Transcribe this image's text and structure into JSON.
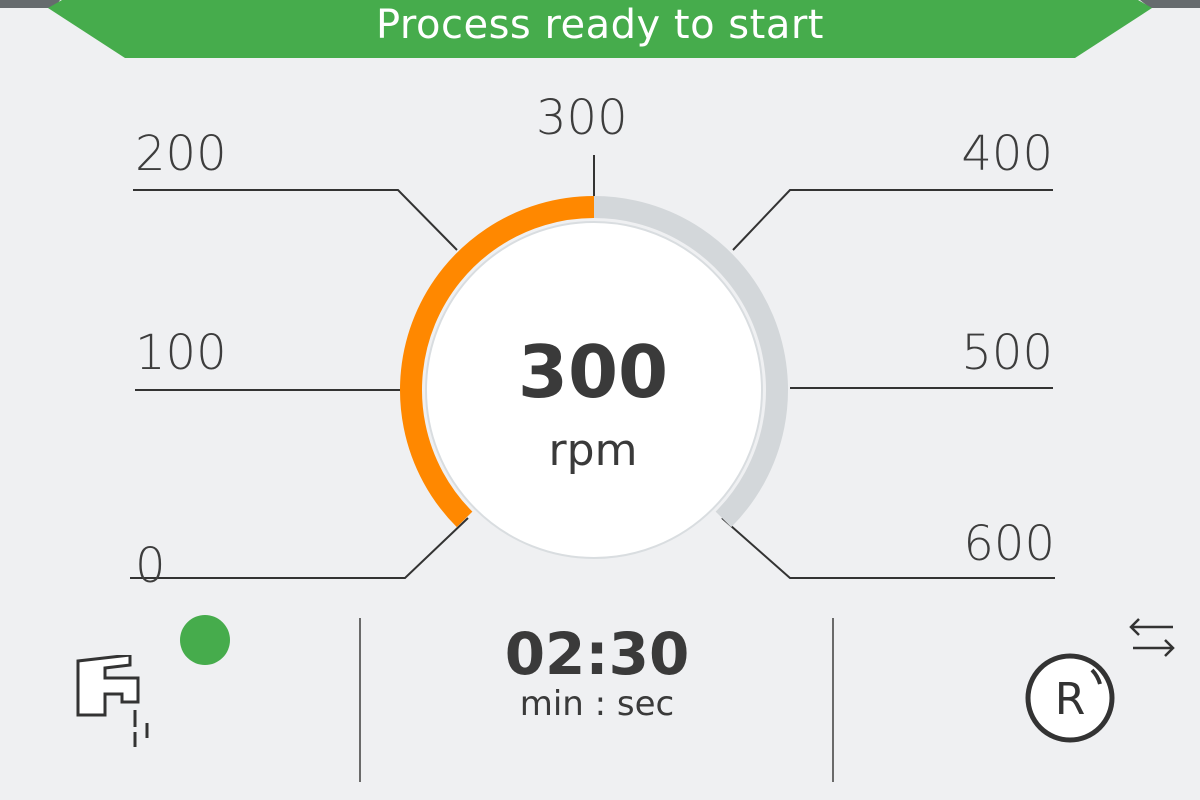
{
  "header": {
    "status_text": "Process ready to start",
    "color": "#46ac4c"
  },
  "gauge": {
    "value": "300",
    "unit": "rpm",
    "min": 0,
    "max": 600,
    "current": 300,
    "fill_color": "#ff8800",
    "track_color": "#d3d7da",
    "ticks": [
      "0",
      "100",
      "200",
      "300",
      "400",
      "500",
      "600"
    ]
  },
  "footer": {
    "water_status_color": "#46ac4c",
    "timer_value": "02:30",
    "timer_unit": "min : sec",
    "icons": [
      "water-tap-icon",
      "status-dot",
      "swap-arrows-icon",
      "rotor-r-icon"
    ]
  }
}
